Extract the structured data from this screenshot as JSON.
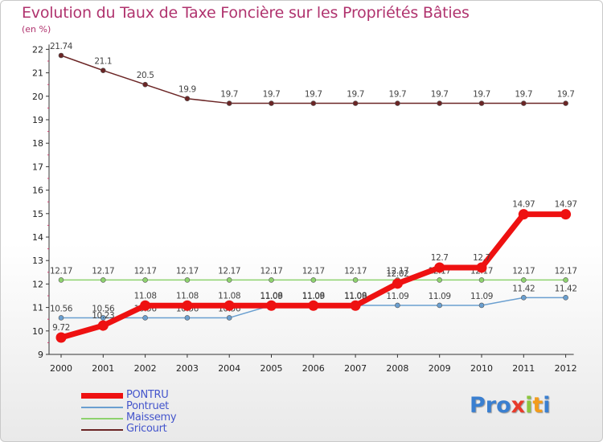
{
  "title": "Evolution du Taux de Taxe Foncière sur les Propriétés Bâties",
  "unit": "(en %)",
  "logo": {
    "parts": [
      {
        "text": "Pro",
        "color": "#3a7fd0"
      },
      {
        "text": "x",
        "color": "#e83a2a"
      },
      {
        "text": "i",
        "color": "#8cc63f"
      },
      {
        "text": "t",
        "color": "#f39c1b"
      },
      {
        "text": "i",
        "color": "#3a7fd0"
      }
    ]
  },
  "chart_data": {
    "type": "line",
    "x": [
      "2000",
      "2001",
      "2002",
      "2003",
      "2004",
      "2005",
      "2006",
      "2007",
      "2008",
      "2009",
      "2010",
      "2011",
      "2012"
    ],
    "ylim": [
      9,
      22
    ],
    "yticks": [
      9,
      10,
      11,
      12,
      13,
      14,
      15,
      16,
      17,
      18,
      19,
      20,
      21,
      22
    ],
    "grid": false,
    "legend_position": "bottom-left",
    "series": [
      {
        "name": "Gricourt",
        "color": "#6b2525",
        "values": [
          21.74,
          21.1,
          20.5,
          19.9,
          19.7,
          19.7,
          19.7,
          19.7,
          19.7,
          19.7,
          19.7,
          19.7,
          19.7
        ],
        "labels": [
          "21.74",
          "21.1",
          "20.5",
          "19.9",
          "19.7",
          "19.7",
          "19.7",
          "19.7",
          "19.7",
          "19.7",
          "19.7",
          "19.7",
          "19.7"
        ]
      },
      {
        "name": "Maissemy",
        "color": "#8ed26e",
        "values": [
          12.17,
          12.17,
          12.17,
          12.17,
          12.17,
          12.17,
          12.17,
          12.17,
          12.17,
          12.17,
          12.17,
          12.17,
          12.17
        ],
        "labels": [
          "12.17",
          "12.17",
          "12.17",
          "12.17",
          "12.17",
          "12.17",
          "12.17",
          "12.17",
          "12.17",
          "12.17",
          "12.17",
          "12.17",
          "12.17"
        ]
      },
      {
        "name": "Pontruet",
        "color": "#6a9fd0",
        "values": [
          10.56,
          10.56,
          10.56,
          10.56,
          10.56,
          11.09,
          11.09,
          11.09,
          11.09,
          11.09,
          11.09,
          11.42,
          11.42
        ],
        "labels": [
          "10.56",
          "10.56",
          "10.56",
          "10.56",
          "10.56",
          "11.09",
          "11.09",
          "11.09",
          "11.09",
          "11.09",
          "11.09",
          "11.42",
          "11.42"
        ]
      },
      {
        "name": "PONTRU",
        "color": "#ee1111",
        "values": [
          9.72,
          10.23,
          11.08,
          11.08,
          11.08,
          11.08,
          11.08,
          11.08,
          12.02,
          12.7,
          12.7,
          14.97,
          14.97
        ],
        "labels": [
          "9.72",
          "10.23",
          "11.08",
          "11.08",
          "11.08",
          "11.08",
          "11.08",
          "11.08",
          "12.02",
          "12.7",
          "12.7",
          "14.97",
          "14.97"
        ]
      }
    ]
  },
  "legend": [
    {
      "name": "PONTRU",
      "color": "#ee1111",
      "thick": true
    },
    {
      "name": "Pontruet",
      "color": "#6a9fd0",
      "thick": false
    },
    {
      "name": "Maissemy",
      "color": "#8ed26e",
      "thick": false
    },
    {
      "name": "Gricourt",
      "color": "#6b2525",
      "thick": false
    }
  ]
}
